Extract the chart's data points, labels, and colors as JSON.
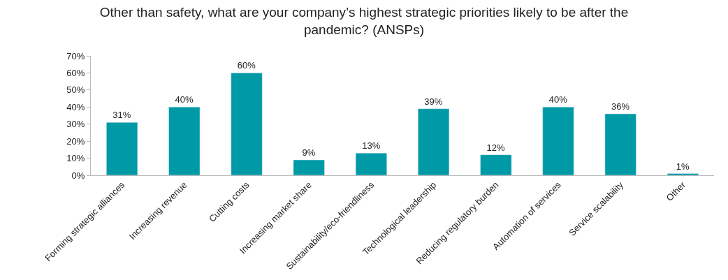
{
  "chart_data": {
    "type": "bar",
    "title": "Other than safety, what are your company’s highest strategic priorities likely to be after the pandemic? (ANSPs)",
    "categories": [
      "Forming strategic alliances",
      "Increasing revenue",
      "Cutting costs",
      "Increasing market share",
      "Sustainability/eco-friendliness",
      "Technological leadership",
      "Reducing regulatory burden",
      "Automation of services",
      "Service scalability",
      "Other"
    ],
    "values": [
      31,
      40,
      60,
      9,
      13,
      39,
      12,
      40,
      36,
      1
    ],
    "value_labels": [
      "31%",
      "40%",
      "60%",
      "9%",
      "13%",
      "39%",
      "12%",
      "40%",
      "36%",
      "1%"
    ],
    "color": "#009aa6",
    "ylim": [
      0,
      70
    ],
    "yticks": [
      {
        "value": 0,
        "label": "0%"
      },
      {
        "value": 10,
        "label": "10%"
      },
      {
        "value": 20,
        "label": "20%"
      },
      {
        "value": 30,
        "label": "30%"
      },
      {
        "value": 40,
        "label": "40%"
      },
      {
        "value": 50,
        "label": "50%"
      },
      {
        "value": 60,
        "label": "60%"
      },
      {
        "value": 70,
        "label": "70%"
      }
    ],
    "legend": false
  }
}
